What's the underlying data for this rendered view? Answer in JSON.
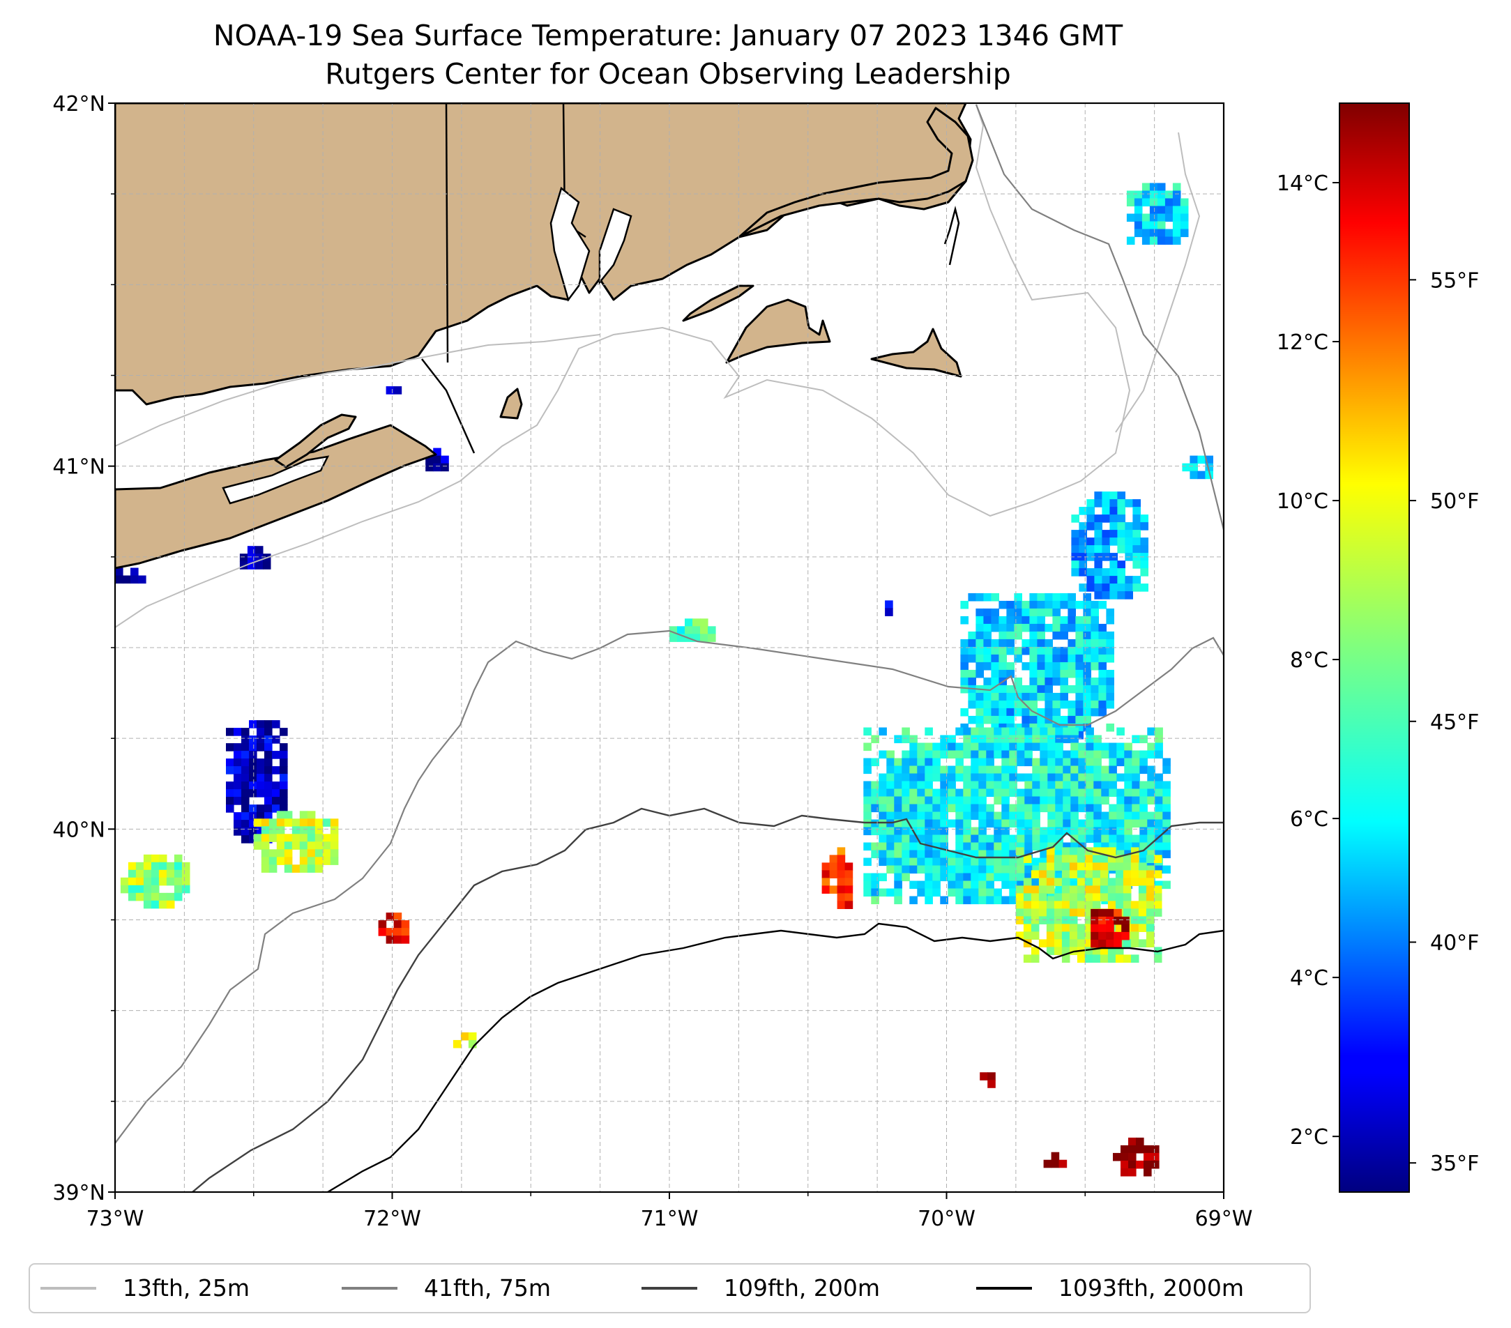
{
  "title": {
    "line1": "NOAA-19 Sea Surface Temperature: January 07 2023 1346 GMT",
    "line2": "Rutgers Center for Ocean Observing Leadership"
  },
  "map": {
    "lon_range": [
      -73,
      -69
    ],
    "lat_range": [
      39,
      42
    ],
    "x_ticks": [
      {
        "value": -73,
        "label": "73°W"
      },
      {
        "value": -72,
        "label": "72°W"
      },
      {
        "value": -71,
        "label": "71°W"
      },
      {
        "value": -70,
        "label": "70°W"
      },
      {
        "value": -69,
        "label": "69°W"
      }
    ],
    "y_ticks": [
      {
        "value": 42,
        "label": "42°N"
      },
      {
        "value": 41,
        "label": "41°N"
      },
      {
        "value": 40,
        "label": "40°N"
      },
      {
        "value": 39,
        "label": "39°N"
      }
    ],
    "gridlines": true,
    "land_color": "#d2b48c"
  },
  "colorbar": {
    "colormap": "jet",
    "range_c": [
      1.3,
      15.0
    ],
    "celsius_ticks": [
      {
        "value": 2,
        "label": "2°C"
      },
      {
        "value": 4,
        "label": "4°C"
      },
      {
        "value": 6,
        "label": "6°C"
      },
      {
        "value": 8,
        "label": "8°C"
      },
      {
        "value": 10,
        "label": "10°C"
      },
      {
        "value": 12,
        "label": "12°C"
      },
      {
        "value": 14,
        "label": "14°C"
      }
    ],
    "fahrenheit_ticks": [
      {
        "value": 35,
        "label": "35°F"
      },
      {
        "value": 40,
        "label": "40°F"
      },
      {
        "value": 45,
        "label": "45°F"
      },
      {
        "value": 50,
        "label": "50°F"
      },
      {
        "value": 55,
        "label": "55°F"
      }
    ]
  },
  "legend": {
    "placement": "bottom",
    "items": [
      {
        "label": "13fth, 25m",
        "color": "#bdbdbd"
      },
      {
        "label": "41fth, 75m",
        "color": "#808080"
      },
      {
        "label": "109fth, 200m",
        "color": "#404040"
      },
      {
        "label": "1093fth, 2000m",
        "color": "#000000"
      }
    ]
  },
  "sst_patches": [
    {
      "lon": [
        -69.95,
        -69.4
      ],
      "lat": [
        40.25,
        40.65
      ],
      "temp_c": 6.0
    },
    {
      "lon": [
        -69.55,
        -69.28
      ],
      "lat": [
        40.65,
        40.93
      ],
      "temp_c": 5.5
    },
    {
      "lon": [
        -70.3,
        -69.2
      ],
      "lat": [
        39.8,
        40.28
      ],
      "temp_c": 6.5
    },
    {
      "lon": [
        -69.75,
        -69.25
      ],
      "lat": [
        39.65,
        39.95
      ],
      "temp_c": 9.0
    },
    {
      "lon": [
        -69.48,
        -69.35
      ],
      "lat": [
        39.68,
        39.78
      ],
      "temp_c": 13.8
    },
    {
      "lon": [
        -70.45,
        -70.35
      ],
      "lat": [
        39.8,
        39.95
      ],
      "temp_c": 12.5
    },
    {
      "lon": [
        -72.6,
        -72.4
      ],
      "lat": [
        39.98,
        40.3
      ],
      "temp_c": 2.0
    },
    {
      "lon": [
        -72.5,
        -72.2
      ],
      "lat": [
        39.9,
        40.05
      ],
      "temp_c": 9.0
    },
    {
      "lon": [
        -72.98,
        -72.75
      ],
      "lat": [
        39.8,
        39.93
      ],
      "temp_c": 8.5
    },
    {
      "lon": [
        -72.05,
        -71.95
      ],
      "lat": [
        39.7,
        39.77
      ],
      "temp_c": 13.0
    },
    {
      "lon": [
        -71.0,
        -70.85
      ],
      "lat": [
        40.52,
        40.58
      ],
      "temp_c": 7.0
    },
    {
      "lon": [
        -69.35,
        -69.15
      ],
      "lat": [
        41.62,
        41.78
      ],
      "temp_c": 6.0
    },
    {
      "lon": [
        -69.15,
        -69.05
      ],
      "lat": [
        40.97,
        41.05
      ],
      "temp_c": 6.5
    },
    {
      "lon": [
        -69.4,
        -69.25
      ],
      "lat": [
        39.05,
        39.15
      ],
      "temp_c": 15.0
    },
    {
      "lon": [
        -69.65,
        -69.58
      ],
      "lat": [
        39.08,
        39.11
      ],
      "temp_c": 15.0
    },
    {
      "lon": [
        -69.88,
        -69.85
      ],
      "lat": [
        39.3,
        39.33
      ],
      "temp_c": 13.5
    },
    {
      "lon": [
        -71.78,
        -71.72
      ],
      "lat": [
        39.4,
        39.44
      ],
      "temp_c": 10.0
    },
    {
      "lon": [
        -72.55,
        -72.45
      ],
      "lat": [
        40.72,
        40.78
      ],
      "temp_c": 1.5
    },
    {
      "lon": [
        -73.0,
        -72.9
      ],
      "lat": [
        40.68,
        40.72
      ],
      "temp_c": 1.5
    },
    {
      "lon": [
        -72.05,
        -71.95
      ],
      "lat": [
        41.2,
        41.22
      ],
      "temp_c": 1.5
    },
    {
      "lon": [
        -71.88,
        -71.8
      ],
      "lat": [
        41.0,
        41.05
      ],
      "temp_c": 1.5
    },
    {
      "lon": [
        -70.25,
        -70.2
      ],
      "lat": [
        40.6,
        40.63
      ],
      "temp_c": 2.5
    }
  ]
}
